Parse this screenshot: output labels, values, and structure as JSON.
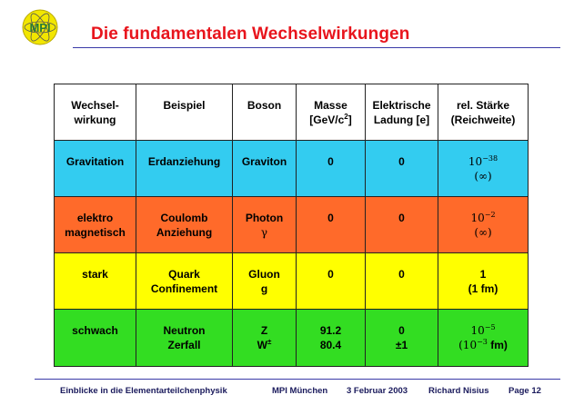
{
  "logo": {
    "text": "MPI",
    "colors": {
      "ring": "#f2e600",
      "text": "#2a7a3a",
      "orbit": "#555555"
    }
  },
  "title": "Die fundamentalen Wechselwirkungen",
  "colors": {
    "title": "#e8141c",
    "rule": "#3a3aa8",
    "gravitation": "#33ccf0",
    "elektromagnetisch": "#ff6a2a",
    "stark": "#ffff00",
    "schwach": "#33dd22"
  },
  "table": {
    "headers": [
      {
        "l1": "Wechsel-",
        "l2": "wirkung"
      },
      {
        "l1": "Beispiel",
        "l2": ""
      },
      {
        "l1": "Boson",
        "l2": ""
      },
      {
        "l1": "Masse",
        "l2": "[GeV/c",
        "l2sup": "2",
        "l2b": "]"
      },
      {
        "l1": "Elektrische",
        "l2": "Ladung [e]"
      },
      {
        "l1": "rel. Stärke",
        "l2": "(Reichweite)"
      }
    ],
    "rows": [
      {
        "id": "gravitation",
        "cells": [
          {
            "l1": "Gravitation",
            "l2": ""
          },
          {
            "l1": "Erdanziehung",
            "l2": ""
          },
          {
            "l1": "Graviton",
            "l2": ""
          },
          {
            "l1": "0",
            "l2": ""
          },
          {
            "l1": "0",
            "l2": ""
          },
          {
            "base": "10",
            "exp": "−38",
            "l2": "(∞)"
          }
        ]
      },
      {
        "id": "elektromagnetisch",
        "cells": [
          {
            "l1": "elektro",
            "l2": "magnetisch"
          },
          {
            "l1": "Coulomb",
            "l2": "Anziehung"
          },
          {
            "l1": "Photon",
            "l2": "γ"
          },
          {
            "l1": "0",
            "l2": ""
          },
          {
            "l1": "0",
            "l2": ""
          },
          {
            "base": "10",
            "exp": "−2",
            "l2": "(∞)"
          }
        ]
      },
      {
        "id": "stark",
        "cells": [
          {
            "l1": "stark",
            "l2": ""
          },
          {
            "l1": "Quark",
            "l2": "Confinement"
          },
          {
            "l1": "Gluon",
            "l2": "g"
          },
          {
            "l1": "0",
            "l2": ""
          },
          {
            "l1": "0",
            "l2": ""
          },
          {
            "l1": "1",
            "l2": "(1 fm)"
          }
        ]
      },
      {
        "id": "schwach",
        "cells": [
          {
            "l1": "schwach",
            "l2": ""
          },
          {
            "l1": "Neutron",
            "l2": "Zerfall"
          },
          {
            "l1": "Z",
            "l2": "W",
            "l2sup": "±"
          },
          {
            "l1": "91.2",
            "l2": "80.4"
          },
          {
            "l1": "0",
            "l2": "±1"
          },
          {
            "base": "10",
            "exp": "−5",
            "l2pre": "(10",
            "l2sup": "−3",
            "l2b": " fm)"
          }
        ]
      }
    ]
  },
  "footer": {
    "course": "Einblicke in die Elementarteilchenphysik",
    "institute": "MPI München",
    "date": "3 Februar 2003",
    "author": "Richard Nisius",
    "page": "Page 12"
  }
}
